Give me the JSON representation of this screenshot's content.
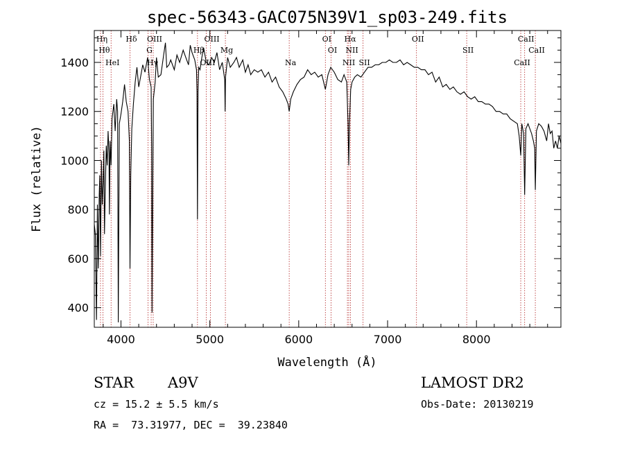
{
  "chart_data": {
    "type": "line",
    "title": "spec-56343-GAC075N39V1_sp03-249.fits",
    "xlabel": "Wavelength (Å)",
    "ylabel": "Flux (relative)",
    "xlim": [
      3700,
      8950
    ],
    "ylim": [
      320,
      1530
    ],
    "xticks": [
      4000,
      5000,
      6000,
      7000,
      8000
    ],
    "yticks": [
      400,
      600,
      800,
      1000,
      1200,
      1400
    ],
    "x_tick_labels": [
      "4000",
      "5000",
      "6000",
      "7000",
      "8000"
    ],
    "y_tick_labels": [
      "400",
      "600",
      "800",
      "1000",
      "1200",
      "1400"
    ],
    "grid": false,
    "series": [
      {
        "points": [
          [
            3700,
            740
          ],
          [
            3712,
            700
          ],
          [
            3725,
            350
          ],
          [
            3735,
            820
          ],
          [
            3745,
            560
          ],
          [
            3755,
            860
          ],
          [
            3762,
            940
          ],
          [
            3770,
            610
          ],
          [
            3780,
            1000
          ],
          [
            3790,
            820
          ],
          [
            3800,
            910
          ],
          [
            3808,
            1040
          ],
          [
            3815,
            700
          ],
          [
            3825,
            900
          ],
          [
            3835,
            1060
          ],
          [
            3845,
            980
          ],
          [
            3855,
            1120
          ],
          [
            3865,
            1030
          ],
          [
            3870,
            780
          ],
          [
            3878,
            1080
          ],
          [
            3889,
            980
          ],
          [
            3900,
            1170
          ],
          [
            3920,
            1230
          ],
          [
            3935,
            1120
          ],
          [
            3952,
            1250
          ],
          [
            3962,
            1200
          ],
          [
            3970,
            340
          ],
          [
            3982,
            1150
          ],
          [
            4000,
            1190
          ],
          [
            4020,
            1240
          ],
          [
            4040,
            1310
          ],
          [
            4060,
            1240
          ],
          [
            4080,
            1200
          ],
          [
            4095,
            1080
          ],
          [
            4102,
            560
          ],
          [
            4110,
            940
          ],
          [
            4122,
            1130
          ],
          [
            4140,
            1230
          ],
          [
            4160,
            1320
          ],
          [
            4180,
            1380
          ],
          [
            4200,
            1300
          ],
          [
            4220,
            1340
          ],
          [
            4245,
            1390
          ],
          [
            4270,
            1360
          ],
          [
            4300,
            1420
          ],
          [
            4320,
            1330
          ],
          [
            4340,
            1300
          ],
          [
            4345,
            1060
          ],
          [
            4350,
            380
          ],
          [
            4357,
            840
          ],
          [
            4365,
            1250
          ],
          [
            4385,
            1320
          ],
          [
            4400,
            1420
          ],
          [
            4420,
            1340
          ],
          [
            4450,
            1350
          ],
          [
            4480,
            1430
          ],
          [
            4500,
            1480
          ],
          [
            4515,
            1380
          ],
          [
            4540,
            1390
          ],
          [
            4560,
            1410
          ],
          [
            4600,
            1370
          ],
          [
            4630,
            1430
          ],
          [
            4660,
            1400
          ],
          [
            4700,
            1450
          ],
          [
            4730,
            1420
          ],
          [
            4760,
            1390
          ],
          [
            4780,
            1470
          ],
          [
            4800,
            1440
          ],
          [
            4830,
            1410
          ],
          [
            4850,
            1370
          ],
          [
            4855,
            1280
          ],
          [
            4861,
            760
          ],
          [
            4867,
            1280
          ],
          [
            4875,
            1380
          ],
          [
            4890,
            1370
          ],
          [
            4910,
            1420
          ],
          [
            4930,
            1460
          ],
          [
            4960,
            1400
          ],
          [
            4990,
            1390
          ],
          [
            5020,
            1420
          ],
          [
            5050,
            1400
          ],
          [
            5080,
            1440
          ],
          [
            5110,
            1370
          ],
          [
            5140,
            1400
          ],
          [
            5167,
            1330
          ],
          [
            5172,
            1200
          ],
          [
            5177,
            1340
          ],
          [
            5200,
            1420
          ],
          [
            5230,
            1380
          ],
          [
            5270,
            1400
          ],
          [
            5300,
            1420
          ],
          [
            5330,
            1380
          ],
          [
            5370,
            1410
          ],
          [
            5400,
            1360
          ],
          [
            5430,
            1390
          ],
          [
            5460,
            1350
          ],
          [
            5500,
            1370
          ],
          [
            5540,
            1360
          ],
          [
            5580,
            1370
          ],
          [
            5620,
            1340
          ],
          [
            5660,
            1360
          ],
          [
            5700,
            1320
          ],
          [
            5740,
            1340
          ],
          [
            5780,
            1300
          ],
          [
            5820,
            1280
          ],
          [
            5860,
            1250
          ],
          [
            5880,
            1230
          ],
          [
            5893,
            1200
          ],
          [
            5910,
            1250
          ],
          [
            5940,
            1280
          ],
          [
            5980,
            1310
          ],
          [
            6020,
            1330
          ],
          [
            6060,
            1340
          ],
          [
            6100,
            1370
          ],
          [
            6140,
            1350
          ],
          [
            6180,
            1360
          ],
          [
            6220,
            1340
          ],
          [
            6260,
            1350
          ],
          [
            6300,
            1290
          ],
          [
            6330,
            1350
          ],
          [
            6360,
            1380
          ],
          [
            6400,
            1360
          ],
          [
            6440,
            1330
          ],
          [
            6480,
            1320
          ],
          [
            6510,
            1350
          ],
          [
            6540,
            1320
          ],
          [
            6555,
            1150
          ],
          [
            6563,
            980
          ],
          [
            6571,
            1150
          ],
          [
            6585,
            1290
          ],
          [
            6600,
            1320
          ],
          [
            6630,
            1340
          ],
          [
            6660,
            1350
          ],
          [
            6700,
            1340
          ],
          [
            6740,
            1360
          ],
          [
            6780,
            1380
          ],
          [
            6820,
            1380
          ],
          [
            6860,
            1390
          ],
          [
            6900,
            1390
          ],
          [
            6940,
            1400
          ],
          [
            6980,
            1400
          ],
          [
            7020,
            1410
          ],
          [
            7060,
            1400
          ],
          [
            7100,
            1400
          ],
          [
            7140,
            1410
          ],
          [
            7180,
            1390
          ],
          [
            7220,
            1400
          ],
          [
            7260,
            1390
          ],
          [
            7300,
            1380
          ],
          [
            7340,
            1380
          ],
          [
            7380,
            1370
          ],
          [
            7420,
            1370
          ],
          [
            7460,
            1350
          ],
          [
            7500,
            1360
          ],
          [
            7540,
            1320
          ],
          [
            7580,
            1340
          ],
          [
            7620,
            1300
          ],
          [
            7660,
            1310
          ],
          [
            7700,
            1290
          ],
          [
            7740,
            1300
          ],
          [
            7780,
            1280
          ],
          [
            7820,
            1270
          ],
          [
            7860,
            1280
          ],
          [
            7900,
            1260
          ],
          [
            7940,
            1250
          ],
          [
            7980,
            1260
          ],
          [
            8020,
            1240
          ],
          [
            8060,
            1240
          ],
          [
            8100,
            1230
          ],
          [
            8140,
            1230
          ],
          [
            8180,
            1220
          ],
          [
            8220,
            1200
          ],
          [
            8260,
            1200
          ],
          [
            8300,
            1190
          ],
          [
            8340,
            1190
          ],
          [
            8380,
            1170
          ],
          [
            8420,
            1160
          ],
          [
            8460,
            1150
          ],
          [
            8480,
            1100
          ],
          [
            8498,
            1020
          ],
          [
            8510,
            1150
          ],
          [
            8530,
            1110
          ],
          [
            8542,
            860
          ],
          [
            8556,
            1130
          ],
          [
            8580,
            1150
          ],
          [
            8600,
            1130
          ],
          [
            8620,
            1110
          ],
          [
            8640,
            1080
          ],
          [
            8655,
            1050
          ],
          [
            8662,
            880
          ],
          [
            8675,
            1120
          ],
          [
            8700,
            1150
          ],
          [
            8730,
            1140
          ],
          [
            8760,
            1120
          ],
          [
            8790,
            1080
          ],
          [
            8810,
            1150
          ],
          [
            8830,
            1110
          ],
          [
            8850,
            1120
          ],
          [
            8870,
            1050
          ],
          [
            8890,
            1080
          ],
          [
            8910,
            1050
          ],
          [
            8930,
            1100
          ],
          [
            8950,
            1070
          ]
        ]
      }
    ],
    "line_markers": [
      {
        "wave": 3770,
        "label": "Hη"
      },
      {
        "wave": 3797,
        "label": "Hθ"
      },
      {
        "wave": 3889,
        "label": "HeI"
      },
      {
        "wave": 4102,
        "label": "Hδ"
      },
      {
        "wave": 4305,
        "label": "G"
      },
      {
        "wave": 4340,
        "label": "Hγ"
      },
      {
        "wave": 4363,
        "label": "OIII"
      },
      {
        "wave": 4861,
        "label": "Hβ"
      },
      {
        "wave": 4959,
        "label": "OIII"
      },
      {
        "wave": 5007,
        "label": "OIII"
      },
      {
        "wave": 5175,
        "label": "Mg"
      },
      {
        "wave": 5893,
        "label": "Na"
      },
      {
        "wave": 6300,
        "label": "OI"
      },
      {
        "wave": 6364,
        "label": "OI"
      },
      {
        "wave": 6548,
        "label": "NII"
      },
      {
        "wave": 6563,
        "label": "Hα"
      },
      {
        "wave": 6583,
        "label": "NII"
      },
      {
        "wave": 6724,
        "label": "SII"
      },
      {
        "wave": 7325,
        "label": "OII"
      },
      {
        "wave": 7890,
        "label": "SII"
      },
      {
        "wave": 8498,
        "label": "CaII"
      },
      {
        "wave": 8542,
        "label": "CaII"
      },
      {
        "wave": 8662,
        "label": "CaII"
      }
    ]
  },
  "info": {
    "object_class": "STAR",
    "subclass": "A9V",
    "survey": "LAMOST DR2",
    "redshift": "cz = 15.2 ± 5.5 km/s",
    "obs_date": "Obs-Date: 20130219",
    "coords": "RA =  73.31977, DEC =  39.23840"
  },
  "colors": {
    "spectrum": "#000000",
    "marker_lines": "#b22222",
    "axes": "#000000"
  }
}
